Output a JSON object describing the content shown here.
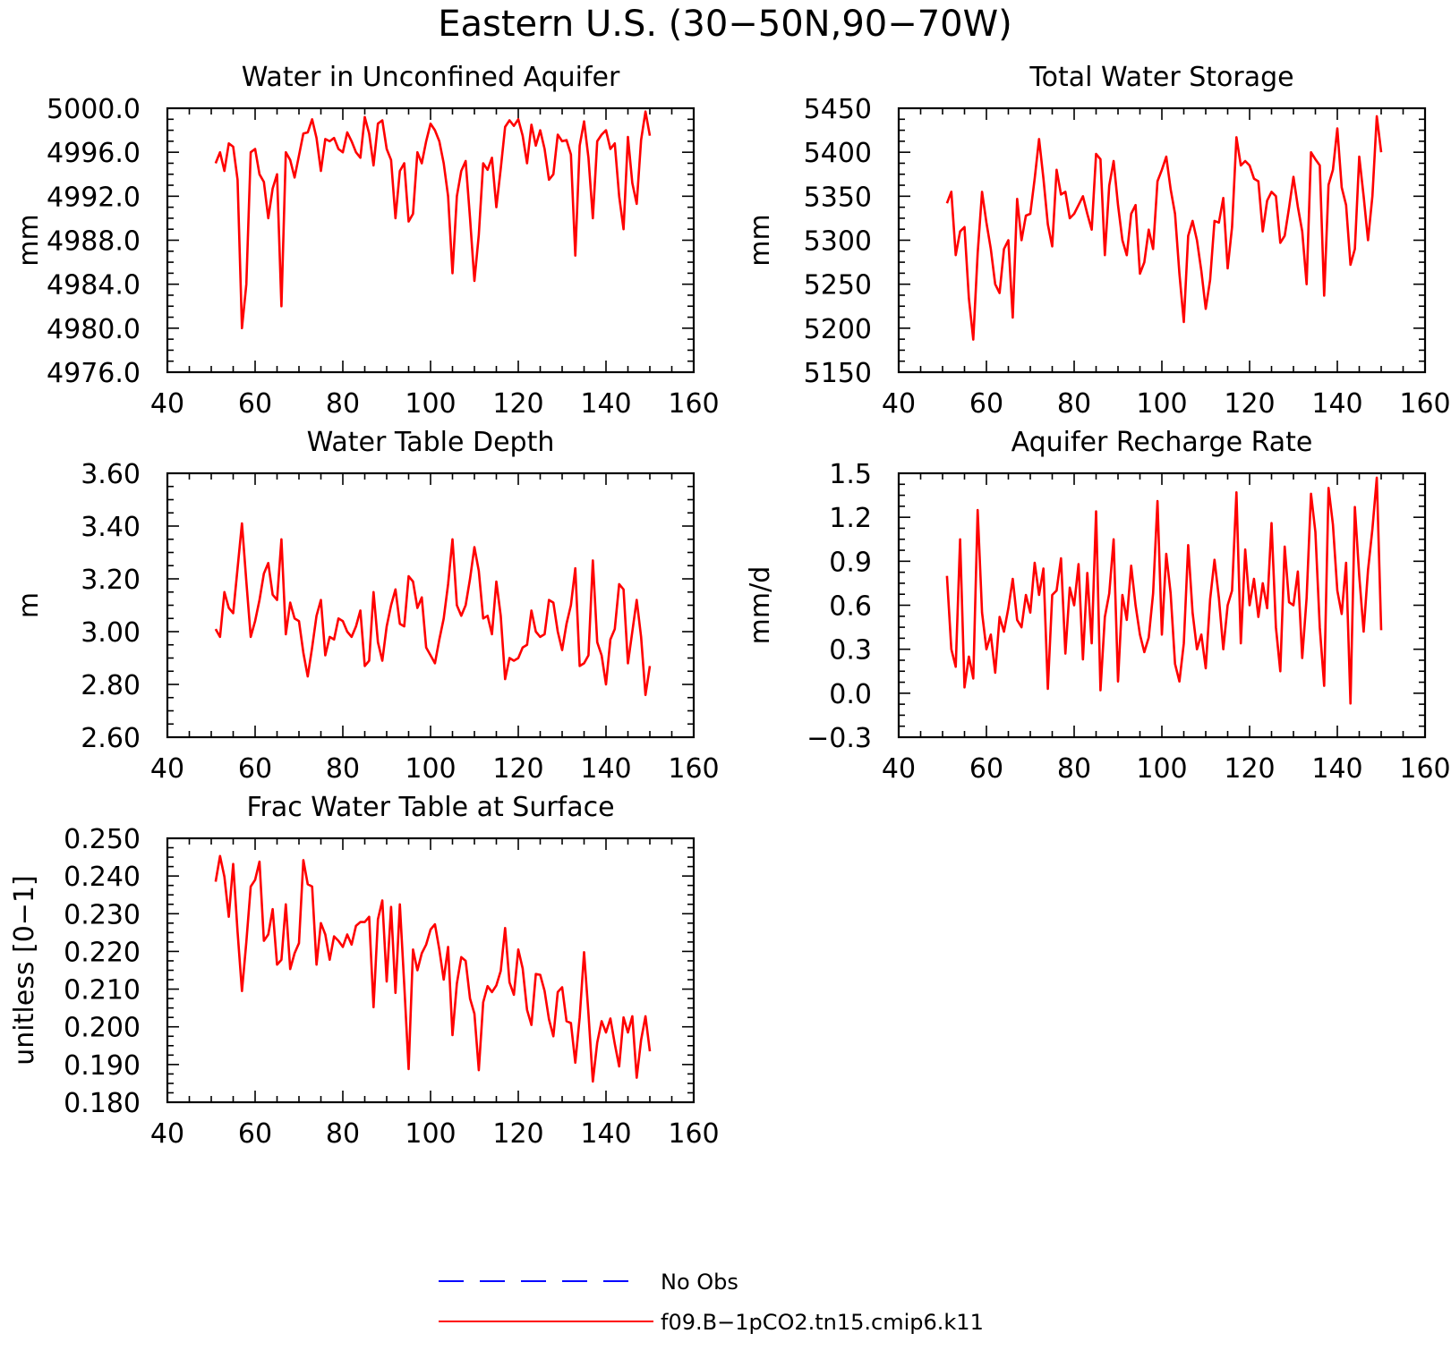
{
  "figure": {
    "title": "Eastern U.S. (30−50N,90−70W)",
    "legend": [
      {
        "label": "No Obs",
        "color": "#0000ff",
        "style": "dashed"
      },
      {
        "label": "f09.B−1pCO2.tn15.cmip6.k11",
        "color": "#ff0000",
        "style": "solid"
      }
    ]
  },
  "chart_data": [
    {
      "type": "line",
      "title": "Water in Unconfined Aquifer",
      "ylabel": "mm",
      "xlim": [
        40,
        160
      ],
      "ylim": [
        4976,
        5000
      ],
      "xticks": [
        "40",
        "60",
        "80",
        "100",
        "120",
        "140",
        "160"
      ],
      "yticks": [
        "4976.0",
        "4980.0",
        "4984.0",
        "4988.0",
        "4992.0",
        "4996.0",
        "5000.0"
      ],
      "series": [
        {
          "name": "f09.B−1pCO2.tn15.cmip6.k11",
          "color": "#ff0000",
          "x_start": 51,
          "x_step": 1,
          "values": [
            4995,
            4996,
            4994.3,
            4996.8,
            4996.5,
            4993.5,
            4980,
            4984,
            4996,
            4996.3,
            4994,
            4993.3,
            4990,
            4992.7,
            4994,
            4982,
            4996,
            4995.3,
            4993.7,
            4995.7,
            4997.7,
            4997.8,
            4999,
            4997.3,
            4994.3,
            4997.2,
            4997,
            4997.3,
            4996.3,
            4996,
            4997.8,
            4997,
            4996,
            4995.5,
            4999.2,
            4997.7,
            4994.8,
            4998.6,
            4998.9,
            4996.3,
            4995.3,
            4990,
            4994.3,
            4995,
            4989.7,
            4990.4,
            4996,
            4995,
            4997,
            4998.6,
            4998,
            4997,
            4995,
            4992,
            4985,
            4992,
            4994.3,
            4995.2,
            4990,
            4984.3,
            4988.5,
            4995,
            4994.4,
            4995.5,
            4991,
            4994.5,
            4998.3,
            4998.9,
            4998.4,
            4999,
            4997.5,
            4995,
            4998.5,
            4996.6,
            4998,
            4996.3,
            4993.5,
            4994,
            4997.6,
            4997,
            4997.1,
            4995.8,
            4986.6,
            4996.6,
            4998.8,
            4995.5,
            4990,
            4997,
            4997.6,
            4998,
            4996.3,
            4996.8,
            4992,
            4989,
            4997.4,
            4993.2,
            4991.3,
            4997.1,
            4999.7,
            4997.5
          ]
        }
      ]
    },
    {
      "type": "line",
      "title": "Total Water Storage",
      "ylabel": "mm",
      "xlim": [
        40,
        160
      ],
      "ylim": [
        5150,
        5450
      ],
      "xticks": [
        "40",
        "60",
        "80",
        "100",
        "120",
        "140",
        "160"
      ],
      "yticks": [
        "5150",
        "5200",
        "5250",
        "5300",
        "5350",
        "5400",
        "5450"
      ],
      "series": [
        {
          "name": "f09.B−1pCO2.tn15.cmip6.k11",
          "color": "#ff0000",
          "x_start": 51,
          "x_step": 1,
          "values": [
            5342,
            5355,
            5283,
            5310,
            5315,
            5234,
            5187,
            5285,
            5355,
            5320,
            5290,
            5250,
            5240,
            5290,
            5300,
            5212,
            5347,
            5300,
            5328,
            5330,
            5370,
            5415,
            5370,
            5318,
            5293,
            5380,
            5352,
            5355,
            5325,
            5330,
            5340,
            5350,
            5330,
            5312,
            5398,
            5392,
            5283,
            5362,
            5390,
            5340,
            5300,
            5283,
            5330,
            5340,
            5262,
            5275,
            5312,
            5290,
            5367,
            5380,
            5395,
            5358,
            5330,
            5262,
            5207,
            5305,
            5322,
            5300,
            5265,
            5222,
            5255,
            5322,
            5320,
            5348,
            5268,
            5315,
            5417,
            5385,
            5390,
            5385,
            5370,
            5367,
            5310,
            5345,
            5355,
            5350,
            5297,
            5305,
            5337,
            5372,
            5338,
            5310,
            5250,
            5400,
            5392,
            5385,
            5237,
            5363,
            5380,
            5427,
            5360,
            5340,
            5272,
            5290,
            5395,
            5350,
            5300,
            5350,
            5441,
            5400
          ]
        }
      ]
    },
    {
      "type": "line",
      "title": "Water Table Depth",
      "ylabel": "m",
      "xlim": [
        40,
        160
      ],
      "ylim": [
        2.6,
        3.6
      ],
      "xticks": [
        "40",
        "60",
        "80",
        "100",
        "120",
        "140",
        "160"
      ],
      "yticks": [
        "2.60",
        "2.80",
        "3.00",
        "3.20",
        "3.40",
        "3.60"
      ],
      "series": [
        {
          "name": "f09.B−1pCO2.tn15.cmip6.k11",
          "color": "#ff0000",
          "x_start": 51,
          "x_step": 1,
          "values": [
            3.01,
            2.98,
            3.15,
            3.09,
            3.07,
            3.24,
            3.41,
            3.19,
            2.98,
            3.04,
            3.12,
            3.22,
            3.26,
            3.14,
            3.12,
            3.35,
            2.99,
            3.11,
            3.05,
            3.04,
            2.92,
            2.83,
            2.94,
            3.06,
            3.12,
            2.91,
            2.98,
            2.97,
            3.05,
            3.04,
            3.0,
            2.98,
            3.02,
            3.08,
            2.87,
            2.89,
            3.15,
            2.96,
            2.89,
            3.02,
            3.1,
            3.16,
            3.03,
            3.02,
            3.21,
            3.19,
            3.09,
            3.13,
            2.94,
            2.91,
            2.88,
            2.97,
            3.05,
            3.18,
            3.35,
            3.1,
            3.06,
            3.1,
            3.2,
            3.32,
            3.23,
            3.05,
            3.06,
            2.99,
            3.19,
            3.06,
            2.82,
            2.9,
            2.89,
            2.9,
            2.94,
            2.95,
            3.08,
            3.0,
            2.98,
            2.99,
            3.12,
            3.11,
            3.0,
            2.93,
            3.03,
            3.1,
            3.24,
            2.87,
            2.88,
            2.91,
            3.27,
            2.96,
            2.91,
            2.8,
            2.97,
            3.01,
            3.18,
            3.16,
            2.88,
            3.0,
            3.12,
            2.98,
            2.76,
            2.87
          ]
        }
      ]
    },
    {
      "type": "line",
      "title": "Aquifer Recharge Rate",
      "ylabel": "mm/d",
      "xlim": [
        40,
        160
      ],
      "ylim": [
        -0.3,
        1.5
      ],
      "xticks": [
        "40",
        "60",
        "80",
        "100",
        "120",
        "140",
        "160"
      ],
      "yticks": [
        "−0.3",
        "0.0",
        "0.3",
        "0.6",
        "0.9",
        "1.2",
        "1.5"
      ],
      "series": [
        {
          "name": "f09.B−1pCO2.tn15.cmip6.k11",
          "color": "#ff0000",
          "x_start": 51,
          "x_step": 1,
          "values": [
            0.8,
            0.3,
            0.18,
            1.05,
            0.04,
            0.25,
            0.1,
            1.25,
            0.55,
            0.3,
            0.4,
            0.14,
            0.52,
            0.42,
            0.58,
            0.78,
            0.5,
            0.45,
            0.67,
            0.55,
            0.89,
            0.67,
            0.85,
            0.03,
            0.67,
            0.7,
            0.92,
            0.27,
            0.72,
            0.6,
            0.88,
            0.23,
            0.82,
            0.34,
            1.24,
            0.02,
            0.52,
            0.68,
            1.05,
            0.08,
            0.67,
            0.5,
            0.87,
            0.6,
            0.4,
            0.28,
            0.38,
            0.68,
            1.31,
            0.4,
            0.95,
            0.68,
            0.2,
            0.08,
            0.34,
            1.01,
            0.55,
            0.3,
            0.4,
            0.17,
            0.64,
            0.91,
            0.65,
            0.3,
            0.6,
            0.7,
            1.37,
            0.34,
            0.98,
            0.6,
            0.78,
            0.52,
            0.75,
            0.58,
            1.16,
            0.45,
            0.15,
            1.0,
            0.62,
            0.6,
            0.83,
            0.24,
            0.65,
            1.36,
            1.1,
            0.45,
            0.05,
            1.4,
            1.15,
            0.7,
            0.54,
            0.89,
            -0.07,
            1.27,
            0.8,
            0.42,
            0.84,
            1.12,
            1.47,
            0.43
          ]
        }
      ]
    },
    {
      "type": "line",
      "title": "Frac Water Table at Surface",
      "ylabel": "unitless [0−1]",
      "xlim": [
        40,
        160
      ],
      "ylim": [
        0.18,
        0.25
      ],
      "xticks": [
        "40",
        "60",
        "80",
        "100",
        "120",
        "140",
        "160"
      ],
      "yticks": [
        "0.180",
        "0.190",
        "0.200",
        "0.210",
        "0.220",
        "0.230",
        "0.240",
        "0.250"
      ],
      "series": [
        {
          "name": "f09.B−1pCO2.tn15.cmip6.k11",
          "color": "#ff0000",
          "x_start": 51,
          "x_step": 1,
          "values": [
            0.2385,
            0.2453,
            0.2398,
            0.2292,
            0.2432,
            0.2252,
            0.2095,
            0.2225,
            0.2372,
            0.239,
            0.2438,
            0.2228,
            0.2245,
            0.2312,
            0.2165,
            0.2178,
            0.2325,
            0.2153,
            0.2195,
            0.2222,
            0.2442,
            0.2378,
            0.2372,
            0.2165,
            0.2275,
            0.2245,
            0.2178,
            0.224,
            0.2228,
            0.2212,
            0.2245,
            0.2218,
            0.2268,
            0.2278,
            0.2278,
            0.2292,
            0.2052,
            0.2285,
            0.2335,
            0.212,
            0.2318,
            0.209,
            0.2325,
            0.2112,
            0.1888,
            0.2205,
            0.215,
            0.2195,
            0.2218,
            0.2258,
            0.2272,
            0.2205,
            0.2125,
            0.2212,
            0.1978,
            0.2115,
            0.2185,
            0.2175,
            0.2075,
            0.2035,
            0.1885,
            0.2065,
            0.2108,
            0.2092,
            0.211,
            0.2148,
            0.2262,
            0.2118,
            0.2085,
            0.2205,
            0.2155,
            0.2045,
            0.2005,
            0.214,
            0.2138,
            0.2095,
            0.202,
            0.1975,
            0.2092,
            0.2105,
            0.2015,
            0.201,
            0.1905,
            0.2025,
            0.2198,
            0.2035,
            0.1855,
            0.1958,
            0.2015,
            0.1985,
            0.2022,
            0.1955,
            0.1895,
            0.2025,
            0.1985,
            0.2028,
            0.1865,
            0.1965,
            0.2028,
            0.1935
          ]
        }
      ]
    }
  ]
}
